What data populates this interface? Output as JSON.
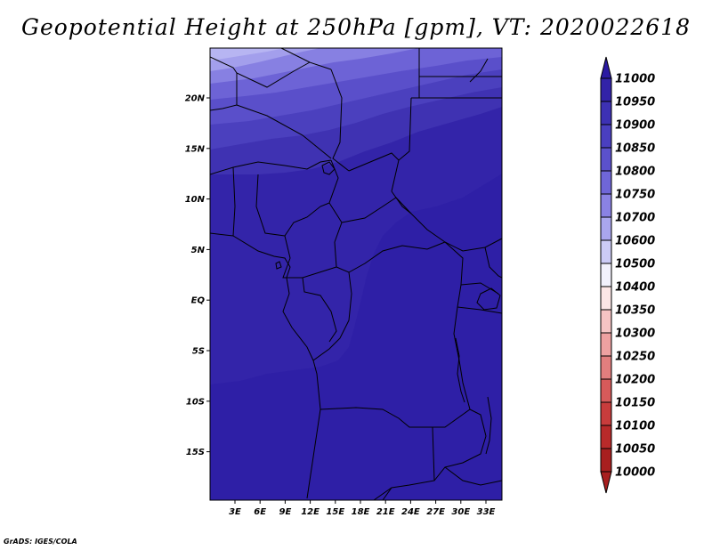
{
  "title": "Geopotential Height at 250hPa [gpm], VT: 2020022618",
  "credit": "GrADS: IGES/COLA",
  "map": {
    "lat_ticks": [
      "20N",
      "15N",
      "10N",
      "5N",
      "EQ",
      "5S",
      "10S",
      "15S"
    ],
    "lon_ticks": [
      "3E",
      "6E",
      "9E",
      "12E",
      "15E",
      "18E",
      "21E",
      "24E",
      "27E",
      "30E",
      "33E"
    ],
    "field": "Geopotential Height",
    "level": "250hPa",
    "units": "gpm"
  },
  "colorbar": {
    "labels": [
      "11000",
      "10950",
      "10900",
      "10850",
      "10800",
      "10750",
      "10700",
      "10600",
      "10500",
      "10400",
      "10350",
      "10300",
      "10250",
      "10200",
      "10150",
      "10100",
      "10050",
      "10000"
    ],
    "colors": [
      "#2b1aa2",
      "#3223a8",
      "#3d31b4",
      "#4a3fc0",
      "#5b51cc",
      "#6f66d8",
      "#8a82e4",
      "#aaa6ee",
      "#cccbf6",
      "#f2f1fc",
      "#fce6e6",
      "#f6c4c4",
      "#eea1a1",
      "#e27e7e",
      "#d65a5a",
      "#c83c3c",
      "#b82a2a",
      "#a81f1f"
    ]
  },
  "chart_data": {
    "type": "heatmap",
    "title": "Geopotential Height at 250hPa [gpm], VT: 2020022618",
    "xlabel": "",
    "ylabel": "",
    "x_ticks": [
      "3E",
      "6E",
      "9E",
      "12E",
      "15E",
      "18E",
      "21E",
      "24E",
      "27E",
      "30E",
      "33E"
    ],
    "y_ticks": [
      "20N",
      "15N",
      "10N",
      "5N",
      "EQ",
      "5S",
      "10S",
      "15S"
    ],
    "colorbar_levels": [
      10000,
      10050,
      10100,
      10150,
      10200,
      10250,
      10300,
      10350,
      10400,
      10500,
      10600,
      10700,
      10750,
      10800,
      10850,
      10900,
      10950,
      11000
    ],
    "field_range_estimate": [
      10750,
      10950
    ]
  }
}
